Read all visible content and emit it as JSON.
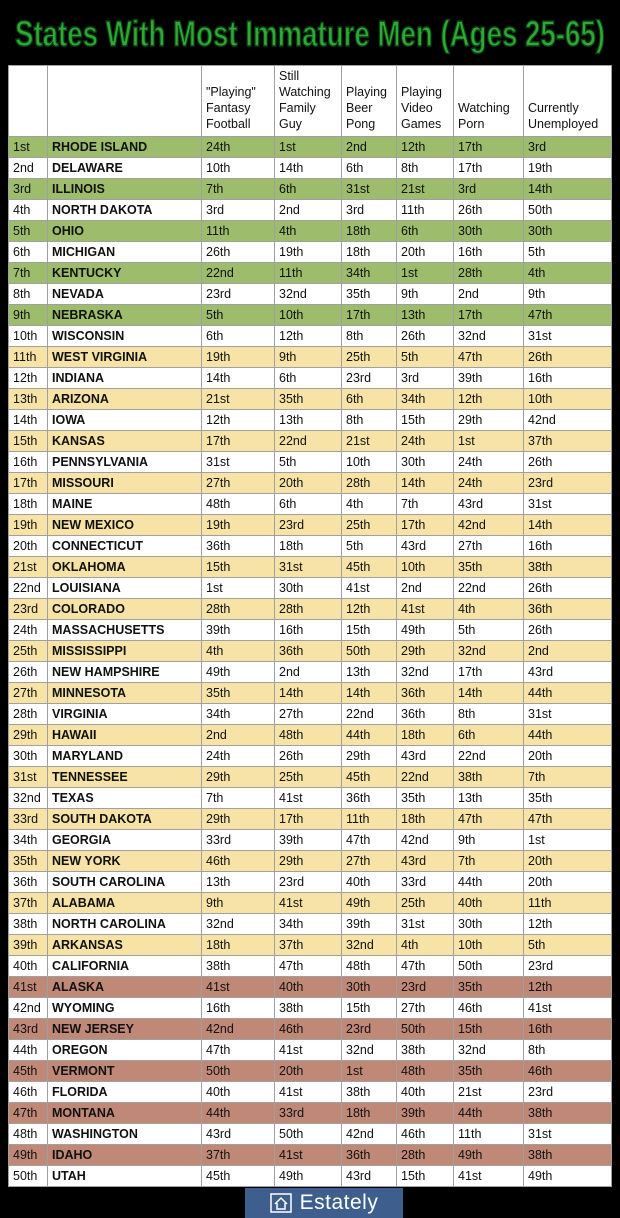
{
  "title": "States With Most Immature Men (Ages 25-65)",
  "table": {
    "headers": [
      [
        "\"Playing\"",
        "Fantasy",
        "Football"
      ],
      [
        "Still",
        "Watching",
        "Family",
        "Guy"
      ],
      [
        "Playing",
        "Beer",
        "Pong"
      ],
      [
        "Playing",
        "Video",
        "Games"
      ],
      [
        "Watching",
        "Porn"
      ],
      [
        "Currently",
        "Unemployed"
      ]
    ],
    "rows": [
      [
        "1st",
        "RHODE ISLAND",
        "24th",
        "1st",
        "2nd",
        "12th",
        "17th",
        "3rd"
      ],
      [
        "2nd",
        "DELAWARE",
        "10th",
        "14th",
        "6th",
        "8th",
        "17th",
        "19th"
      ],
      [
        "3rd",
        "ILLINOIS",
        "7th",
        "6th",
        "31st",
        "21st",
        "3rd",
        "14th"
      ],
      [
        "4th",
        "NORTH DAKOTA",
        "3rd",
        "2nd",
        "3rd",
        "11th",
        "26th",
        "50th"
      ],
      [
        "5th",
        "OHIO",
        "11th",
        "4th",
        "18th",
        "6th",
        "30th",
        "30th"
      ],
      [
        "6th",
        "MICHIGAN",
        "26th",
        "19th",
        "18th",
        "20th",
        "16th",
        "5th"
      ],
      [
        "7th",
        "KENTUCKY",
        "22nd",
        "11th",
        "34th",
        "1st",
        "28th",
        "4th"
      ],
      [
        "8th",
        "NEVADA",
        "23rd",
        "32nd",
        "35th",
        "9th",
        "2nd",
        "9th"
      ],
      [
        "9th",
        "NEBRASKA",
        "5th",
        "10th",
        "17th",
        "13th",
        "17th",
        "47th"
      ],
      [
        "10th",
        "WISCONSIN",
        "6th",
        "12th",
        "8th",
        "26th",
        "32nd",
        "31st"
      ],
      [
        "11th",
        "WEST VIRGINIA",
        "19th",
        "9th",
        "25th",
        "5th",
        "47th",
        "26th"
      ],
      [
        "12th",
        "INDIANA",
        "14th",
        "6th",
        "23rd",
        "3rd",
        "39th",
        "16th"
      ],
      [
        "13th",
        "ARIZONA",
        "21st",
        "35th",
        "6th",
        "34th",
        "12th",
        "10th"
      ],
      [
        "14th",
        "IOWA",
        "12th",
        "13th",
        "8th",
        "15th",
        "29th",
        "42nd"
      ],
      [
        "15th",
        "KANSAS",
        "17th",
        "22nd",
        "21st",
        "24th",
        "1st",
        "37th"
      ],
      [
        "16th",
        "PENNSYLVANIA",
        "31st",
        "5th",
        "10th",
        "30th",
        "24th",
        "26th"
      ],
      [
        "17th",
        "MISSOURI",
        "27th",
        "20th",
        "28th",
        "14th",
        "24th",
        "23rd"
      ],
      [
        "18th",
        "MAINE",
        "48th",
        "6th",
        "4th",
        "7th",
        "43rd",
        "31st"
      ],
      [
        "19th",
        "NEW MEXICO",
        "19th",
        "23rd",
        "25th",
        "17th",
        "42nd",
        "14th"
      ],
      [
        "20th",
        "CONNECTICUT",
        "36th",
        "18th",
        "5th",
        "43rd",
        "27th",
        "16th"
      ],
      [
        "21st",
        "OKLAHOMA",
        "15th",
        "31st",
        "45th",
        "10th",
        "35th",
        "38th"
      ],
      [
        "22nd",
        "LOUISIANA",
        "1st",
        "30th",
        "41st",
        "2nd",
        "22nd",
        "26th"
      ],
      [
        "23rd",
        "COLORADO",
        "28th",
        "28th",
        "12th",
        "41st",
        "4th",
        "36th"
      ],
      [
        "24th",
        "MASSACHUSETTS",
        "39th",
        "16th",
        "15th",
        "49th",
        "5th",
        "26th"
      ],
      [
        "25th",
        "MISSISSIPPI",
        "4th",
        "36th",
        "50th",
        "29th",
        "32nd",
        "2nd"
      ],
      [
        "26th",
        "NEW HAMPSHIRE",
        "49th",
        "2nd",
        "13th",
        "32nd",
        "17th",
        "43rd"
      ],
      [
        "27th",
        "MINNESOTA",
        "35th",
        "14th",
        "14th",
        "36th",
        "14th",
        "44th"
      ],
      [
        "28th",
        "VIRGINIA",
        "34th",
        "27th",
        "22nd",
        "36th",
        "8th",
        "31st"
      ],
      [
        "29th",
        "HAWAII",
        "2nd",
        "48th",
        "44th",
        "18th",
        "6th",
        "44th"
      ],
      [
        "30th",
        "MARYLAND",
        "24th",
        "26th",
        "29th",
        "43rd",
        "22nd",
        "20th"
      ],
      [
        "31st",
        "TENNESSEE",
        "29th",
        "25th",
        "45th",
        "22nd",
        "38th",
        "7th"
      ],
      [
        "32nd",
        "TEXAS",
        "7th",
        "41st",
        "36th",
        "35th",
        "13th",
        "35th"
      ],
      [
        "33rd",
        "SOUTH DAKOTA",
        "29th",
        "17th",
        "11th",
        "18th",
        "47th",
        "47th"
      ],
      [
        "34th",
        "GEORGIA",
        "33rd",
        "39th",
        "47th",
        "42nd",
        "9th",
        "1st"
      ],
      [
        "35th",
        "NEW YORK",
        "46th",
        "29th",
        "27th",
        "43rd",
        "7th",
        "20th"
      ],
      [
        "36th",
        "SOUTH CAROLINA",
        "13th",
        "23rd",
        "40th",
        "33rd",
        "44th",
        "20th"
      ],
      [
        "37th",
        "ALABAMA",
        "9th",
        "41st",
        "49th",
        "25th",
        "40th",
        "11th"
      ],
      [
        "38th",
        "NORTH CAROLINA",
        "32nd",
        "34th",
        "39th",
        "31st",
        "30th",
        "12th"
      ],
      [
        "39th",
        "ARKANSAS",
        "18th",
        "37th",
        "32nd",
        "4th",
        "10th",
        "5th"
      ],
      [
        "40th",
        "CALIFORNIA",
        "38th",
        "47th",
        "48th",
        "47th",
        "50th",
        "23rd"
      ],
      [
        "41st",
        "ALASKA",
        "41st",
        "40th",
        "30th",
        "23rd",
        "35th",
        "12th"
      ],
      [
        "42nd",
        "WYOMING",
        "16th",
        "38th",
        "15th",
        "27th",
        "46th",
        "41st"
      ],
      [
        "43rd",
        "NEW JERSEY",
        "42nd",
        "46th",
        "23rd",
        "50th",
        "15th",
        "16th"
      ],
      [
        "44th",
        "OREGON",
        "47th",
        "41st",
        "32nd",
        "38th",
        "32nd",
        "8th"
      ],
      [
        "45th",
        "VERMONT",
        "50th",
        "20th",
        "1st",
        "48th",
        "35th",
        "46th"
      ],
      [
        "46th",
        "FLORIDA",
        "40th",
        "41st",
        "38th",
        "40th",
        "21st",
        "23rd"
      ],
      [
        "47th",
        "MONTANA",
        "44th",
        "33rd",
        "18th",
        "39th",
        "44th",
        "38th"
      ],
      [
        "48th",
        "WASHINGTON",
        "43rd",
        "50th",
        "42nd",
        "46th",
        "11th",
        "31st"
      ],
      [
        "49th",
        "IDAHO",
        "37th",
        "41st",
        "36th",
        "28th",
        "49th",
        "38th"
      ],
      [
        "50th",
        "UTAH",
        "45th",
        "49th",
        "43rd",
        "15th",
        "41st",
        "49th"
      ]
    ]
  },
  "footer": {
    "brand": "Estately"
  }
}
